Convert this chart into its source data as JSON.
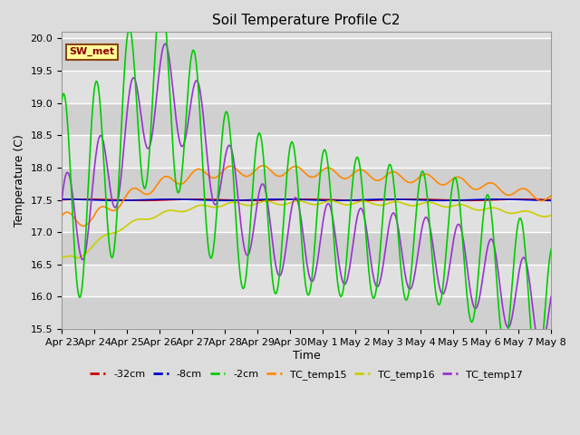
{
  "title": "Soil Temperature Profile C2",
  "xlabel": "Time",
  "ylabel": "Temperature (C)",
  "ylim": [
    15.5,
    20.1
  ],
  "bg_color": "#dcdcdc",
  "annotation_text": "SW_met",
  "annotation_color": "#8B0000",
  "annotation_bg": "#ffff99",
  "annotation_border": "#8B4513",
  "x_labels": [
    "Apr 23",
    "Apr 24",
    "Apr 25",
    "Apr 26",
    "Apr 27",
    "Apr 28",
    "Apr 29",
    "Apr 30",
    "May 1",
    "May 2",
    "May 3",
    "May 4",
    "May 5",
    "May 6",
    "May 7",
    "May 8"
  ],
  "legend_entries": [
    {
      "label": "-32cm",
      "color": "#cc0000"
    },
    {
      "label": "-8cm",
      "color": "#0000cc"
    },
    {
      "label": "-2cm",
      "color": "#00cc00"
    },
    {
      "label": "TC_temp15",
      "color": "#ff8800"
    },
    {
      "label": "TC_temp16",
      "color": "#cccc00"
    },
    {
      "label": "TC_temp17",
      "color": "#9933cc"
    }
  ],
  "grid_color": "#ffffff",
  "line_width": 1.2
}
